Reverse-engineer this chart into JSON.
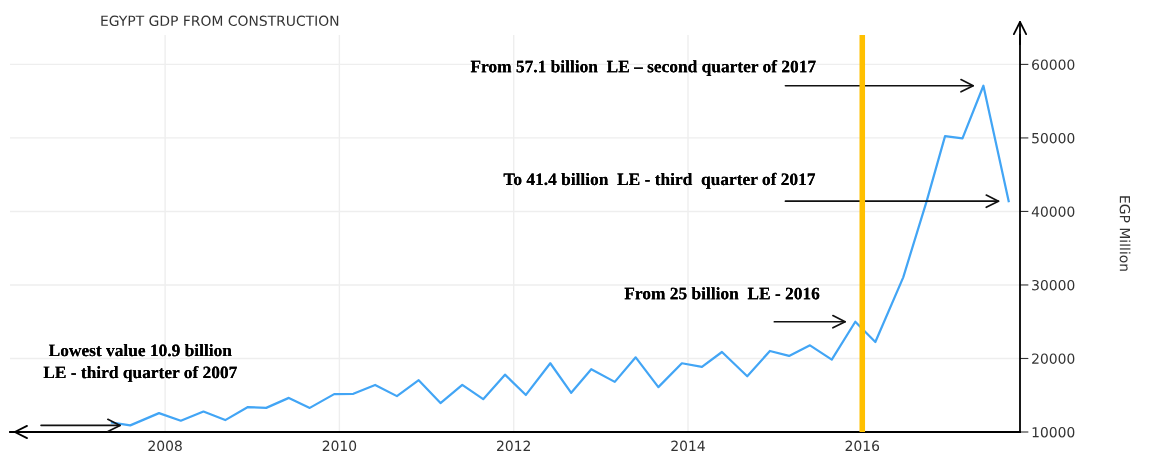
{
  "chart_data": {
    "type": "line",
    "title": "EGYPT GDP FROM CONSTRUCTION",
    "ylabel": "EGP Million",
    "x": [
      2007.39,
      2007.6,
      2007.93,
      2008.18,
      2008.44,
      2008.69,
      2008.95,
      2009.16,
      2009.42,
      2009.66,
      2009.94,
      2010.16,
      2010.41,
      2010.66,
      2010.91,
      2011.16,
      2011.41,
      2011.65,
      2011.9,
      2012.14,
      2012.42,
      2012.66,
      2012.89,
      2013.16,
      2013.4,
      2013.66,
      2013.93,
      2014.16,
      2014.39,
      2014.68,
      2014.94,
      2015.16,
      2015.4,
      2015.65,
      2015.92,
      2016.15,
      2016.47,
      2016.74,
      2016.95,
      2017.15,
      2017.39,
      2017.68
    ],
    "series": [
      {
        "color": "#42a5f5",
        "values": [
          11270,
          10900,
          12570,
          11530,
          12780,
          11620,
          13390,
          13280,
          14640,
          13280,
          15150,
          15190,
          16400,
          14880,
          17050,
          13930,
          16400,
          14470,
          17800,
          15040,
          19350,
          15330,
          18540,
          16820,
          20160,
          16100,
          19350,
          18850,
          20880,
          17590,
          21020,
          20350,
          21790,
          19850,
          25000,
          22240,
          31040,
          41440,
          50240,
          49930,
          57100,
          41400
        ]
      }
    ],
    "xlim": [
      2006.22,
      2017.81
    ],
    "xticks": [
      2008,
      2010,
      2012,
      2014,
      2016
    ],
    "ylim": [
      10000,
      64000
    ],
    "yticks": [
      10000,
      20000,
      30000,
      40000,
      50000,
      60000
    ],
    "grid": true,
    "marker": "none",
    "line_style": "solid",
    "ref_lines": [
      {
        "axis": "x",
        "value": 2016,
        "color": "#ffc000"
      }
    ],
    "annotations": [
      {
        "text": "Lowest value 10.9 billion\nLE - third quarter of 2007",
        "x": 2007.6,
        "y": 10900
      },
      {
        "text": "From 25 billion  LE - 2016",
        "x": 2015.92,
        "y": 25000
      },
      "From 57.1 billion  LE – second quarter of 2017",
      "To 41.4 billion  LE - third  quarter of 2017"
    ]
  }
}
